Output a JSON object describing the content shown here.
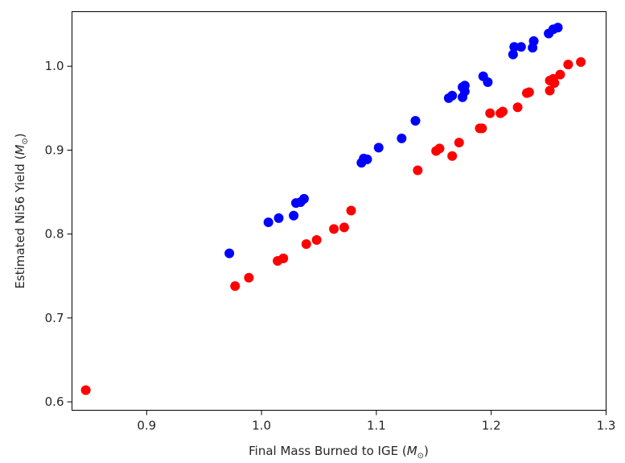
{
  "chart_data": {
    "type": "scatter",
    "xlabel": "Final Mass Burned to IGE",
    "xlabel_unit": "M",
    "ylabel": "Estimated Ni56 Yield",
    "ylabel_unit": "M",
    "xlim": [
      0.835,
      1.3
    ],
    "ylim": [
      0.59,
      1.065
    ],
    "xticks": [
      "0.9",
      "1.0",
      "1.1",
      "1.2",
      "1.3"
    ],
    "yticks": [
      "0.6",
      "0.7",
      "0.8",
      "0.9",
      "1.0"
    ],
    "grid": false,
    "series": [
      {
        "color": "#0000ff",
        "points": [
          [
            0.972,
            0.777
          ],
          [
            1.006,
            0.814
          ],
          [
            1.015,
            0.819
          ],
          [
            1.028,
            0.822
          ],
          [
            1.03,
            0.837
          ],
          [
            1.034,
            0.838
          ],
          [
            1.037,
            0.842
          ],
          [
            1.087,
            0.885
          ],
          [
            1.089,
            0.89
          ],
          [
            1.092,
            0.889
          ],
          [
            1.102,
            0.903
          ],
          [
            1.122,
            0.914
          ],
          [
            1.134,
            0.935
          ],
          [
            1.163,
            0.962
          ],
          [
            1.166,
            0.965
          ],
          [
            1.175,
            0.963
          ],
          [
            1.175,
            0.975
          ],
          [
            1.177,
            0.977
          ],
          [
            1.177,
            0.97
          ],
          [
            1.193,
            0.988
          ],
          [
            1.197,
            0.981
          ],
          [
            1.219,
            1.014
          ],
          [
            1.22,
            1.023
          ],
          [
            1.226,
            1.023
          ],
          [
            1.236,
            1.022
          ],
          [
            1.237,
            1.03
          ],
          [
            1.25,
            1.039
          ],
          [
            1.254,
            1.044
          ],
          [
            1.258,
            1.046
          ]
        ]
      },
      {
        "color": "#ff0000",
        "points": [
          [
            0.847,
            0.614
          ],
          [
            0.977,
            0.738
          ],
          [
            0.989,
            0.748
          ],
          [
            1.014,
            0.768
          ],
          [
            1.019,
            0.771
          ],
          [
            1.039,
            0.788
          ],
          [
            1.048,
            0.793
          ],
          [
            1.063,
            0.806
          ],
          [
            1.072,
            0.808
          ],
          [
            1.078,
            0.828
          ],
          [
            1.136,
            0.876
          ],
          [
            1.152,
            0.899
          ],
          [
            1.155,
            0.902
          ],
          [
            1.166,
            0.893
          ],
          [
            1.172,
            0.909
          ],
          [
            1.19,
            0.926
          ],
          [
            1.192,
            0.926
          ],
          [
            1.199,
            0.944
          ],
          [
            1.208,
            0.944
          ],
          [
            1.21,
            0.946
          ],
          [
            1.223,
            0.951
          ],
          [
            1.231,
            0.968
          ],
          [
            1.233,
            0.969
          ],
          [
            1.251,
            0.971
          ],
          [
            1.251,
            0.983
          ],
          [
            1.254,
            0.985
          ],
          [
            1.255,
            0.98
          ],
          [
            1.26,
            0.99
          ],
          [
            1.267,
            1.002
          ],
          [
            1.278,
            1.005
          ]
        ]
      }
    ]
  }
}
